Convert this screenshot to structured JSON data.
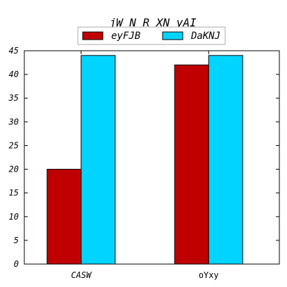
{
  "chart_data": {
    "type": "bar",
    "title": "jW N  R XN yAI",
    "categories": [
      "CASW",
      "oYxy"
    ],
    "series": [
      {
        "name": "eyFJB",
        "values": [
          20,
          42
        ],
        "color": "#c00000"
      },
      {
        "name": "DaKNJ",
        "values": [
          44,
          44
        ],
        "color": "#00d4ff"
      }
    ],
    "xlabel": "",
    "ylabel": "",
    "ylim": [
      0,
      45
    ],
    "yticks": [
      0,
      5,
      10,
      15,
      20,
      25,
      30,
      35,
      40,
      45
    ],
    "grid": false,
    "legend_position": "top-center"
  }
}
